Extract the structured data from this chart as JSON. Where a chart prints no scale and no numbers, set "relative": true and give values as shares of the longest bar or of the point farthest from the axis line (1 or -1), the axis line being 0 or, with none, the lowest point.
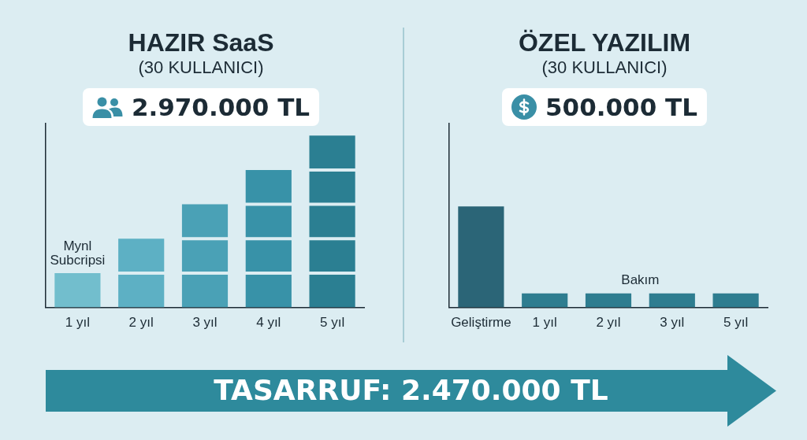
{
  "chart_data": [
    {
      "type": "bar",
      "title": "HAZIR SaaS",
      "subtitle": "(30 KULLANICI)",
      "annotations": [
        "2.970.000 TL",
        {
          "text": "Mynl Subcripsi",
          "x": "1 yıl",
          "y": 0.2
        }
      ],
      "categories": [
        "1 yıl",
        "2 yıl",
        "3 yıl",
        "4 yıl",
        "5 yıl"
      ],
      "relative": true,
      "stacked": true,
      "series": [
        {
          "colors": [
            "#72becd",
            "#5db0c4",
            "#4aa1b6",
            "#3892a8",
            "#2b7f92"
          ],
          "values": [
            0.2,
            0.2,
            0.2,
            0.2,
            0.2
          ]
        },
        {
          "colors": [
            "#72becd",
            "#5db0c4",
            "#4aa1b6",
            "#3892a8",
            "#2b7f92"
          ],
          "values": [
            null,
            0.2,
            0.2,
            0.2,
            0.2
          ]
        },
        {
          "colors": [
            "#72becd",
            "#5db0c4",
            "#4aa1b6",
            "#3892a8",
            "#2b7f92"
          ],
          "values": [
            null,
            null,
            0.2,
            0.2,
            0.2
          ]
        },
        {
          "colors": [
            "#72becd",
            "#5db0c4",
            "#4aa1b6",
            "#3892a8",
            "#2b7f92"
          ],
          "values": [
            null,
            null,
            null,
            0.2,
            0.2
          ]
        },
        {
          "colors": [
            "#72becd",
            "#5db0c4",
            "#4aa1b6",
            "#3892a8",
            "#2b7f92"
          ],
          "values": [
            null,
            null,
            null,
            null,
            0.2
          ]
        }
      ]
    },
    {
      "type": "bar",
      "title": "ÖZEL YAZILIM",
      "subtitle": "(30 KULLANICI)",
      "annotations": [
        "500.000 TL"
      ],
      "categories": [
        "Geliştirme",
        "1 yıl",
        "2 yıl",
        "3 yıl",
        "5 yıl"
      ],
      "relative": true,
      "series": [
        {
          "color": "#2b6577",
          "values": [
            1,
            null,
            null,
            null,
            null
          ]
        },
        {
          "name": "Bakım",
          "color": "#2e7d90",
          "values": [
            null,
            0.14,
            0.14,
            0.14,
            0.14
          ]
        }
      ]
    },
    {
      "type": "other",
      "annotations": [
        "TASARRUF: 2.470.000 TL"
      ]
    }
  ]
}
